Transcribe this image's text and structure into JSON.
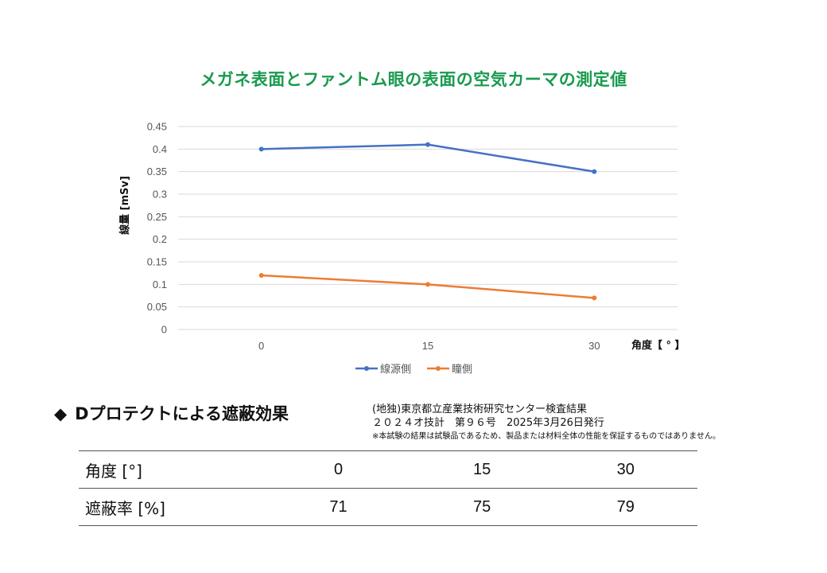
{
  "chart_data": {
    "type": "line",
    "title": "メガネ表面とファントム眼の表面の空気カーマの測定値",
    "xlabel": "角度【 ° 】",
    "ylabel": "線量 [mSv]",
    "categories": [
      "0",
      "15",
      "30"
    ],
    "ylim": [
      0,
      0.45
    ],
    "yticks": [
      "0",
      "0.05",
      "0.1",
      "0.15",
      "0.2",
      "0.25",
      "0.3",
      "0.35",
      "0.4",
      "0.45"
    ],
    "grid": true,
    "legend_position": "bottom",
    "series": [
      {
        "name": "線源側",
        "values": [
          0.4,
          0.41,
          0.35
        ],
        "color": "#4472c4"
      },
      {
        "name": "瞳側",
        "values": [
          0.12,
          0.1,
          0.07
        ],
        "color": "#ed7d31"
      }
    ]
  },
  "section": {
    "diamond": "◆",
    "heading": "Dプロテクトによる遮蔽効果"
  },
  "source": {
    "line1": "(地独)東京都立産業技術研究センター検査結果",
    "line2": "２０２４オ技計　第９６号　2025年3月26日発行",
    "disclaimer": "※本試験の結果は試験品であるため、製品または材料全体の性能を保証するものではありません。"
  },
  "table": {
    "rows": [
      {
        "label": "角度 [°]",
        "values": [
          "0",
          "15",
          "30"
        ]
      },
      {
        "label": "遮蔽率 [%]",
        "values": [
          "71",
          "75",
          "79"
        ]
      }
    ]
  }
}
